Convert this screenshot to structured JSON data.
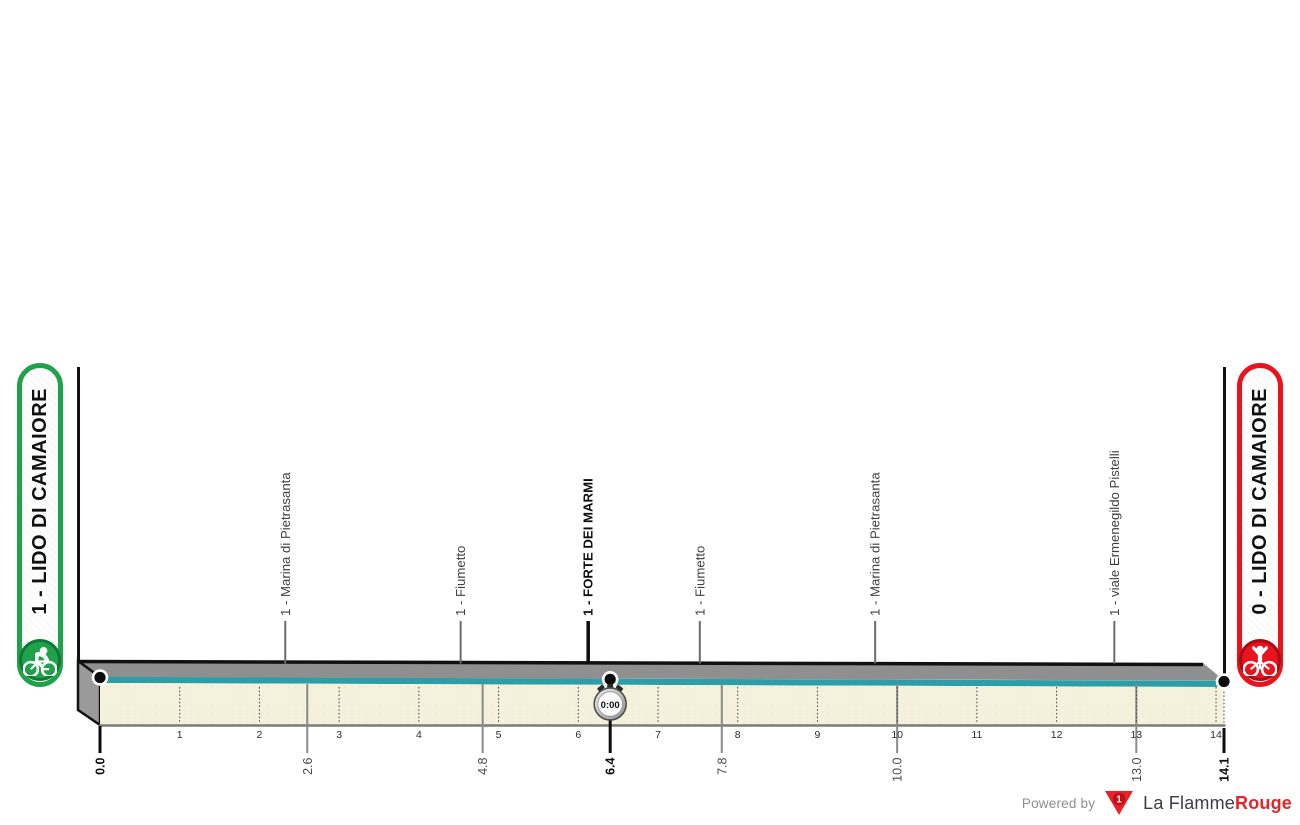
{
  "page": {
    "background": "#ffffff"
  },
  "chart_data": {
    "type": "area",
    "description": "Flat cycling race profile (individual time trial style stage)",
    "x_unit": "km",
    "total_distance_km": 14.1,
    "start": {
      "km": 0.0,
      "label": "1 - LIDO DI CAMAIORE",
      "color": "#1fa24a"
    },
    "finish": {
      "km": 14.1,
      "label": "0 - LIDO DI CAMAIORE",
      "color": "#ea121d"
    },
    "checkpoints": [
      {
        "km": 2.6,
        "label": "1 - Marina di Pietrasanta",
        "bold": false
      },
      {
        "km": 4.8,
        "label": "1 - Fiumetto",
        "bold": false
      },
      {
        "km": 6.4,
        "label": "1 - FORTE DEI MARMI",
        "bold": true,
        "timing_label": "0:00"
      },
      {
        "km": 7.8,
        "label": "1 - Fiumetto",
        "bold": false
      },
      {
        "km": 10.0,
        "label": "1 - Marina di Pietrasanta",
        "bold": false
      },
      {
        "km": 13.0,
        "label": "1 - viale Ermenegildo Pistelli",
        "bold": false
      }
    ],
    "km_marks": [
      {
        "km": 0.0,
        "label": "0.0",
        "bold": true
      },
      {
        "km": 2.6,
        "label": "2.6",
        "bold": false
      },
      {
        "km": 4.8,
        "label": "4.8",
        "bold": false
      },
      {
        "km": 6.4,
        "label": "6.4",
        "bold": true
      },
      {
        "km": 7.8,
        "label": "7.8",
        "bold": false
      },
      {
        "km": 10.0,
        "label": "10.0",
        "bold": false
      },
      {
        "km": 13.0,
        "label": "13.0",
        "bold": false
      },
      {
        "km": 14.1,
        "label": "14.1",
        "bold": true
      }
    ],
    "integer_ticks": [
      1,
      2,
      3,
      4,
      5,
      6,
      7,
      8,
      9,
      10,
      11,
      12,
      13,
      14
    ],
    "timing_km": 6.4,
    "timing_value": "0:00",
    "elevation_shape": "flat",
    "axis": {
      "grid": "dotted vertical lines at each km",
      "legend": "none"
    }
  },
  "colors": {
    "start_green": "#1fa24a",
    "finish_red": "#ea121d",
    "road_gray": "#8f8f8f",
    "surface_teal": "#2d9ea7",
    "fill_cream": "#f4f1dc",
    "axis_gray": "#7b7b7b",
    "ink": "#0d0d0d"
  },
  "footer": {
    "powered_by": "Powered by",
    "brand_first": "La Flamme",
    "brand_second": "Rouge",
    "brand_badge": "1"
  }
}
